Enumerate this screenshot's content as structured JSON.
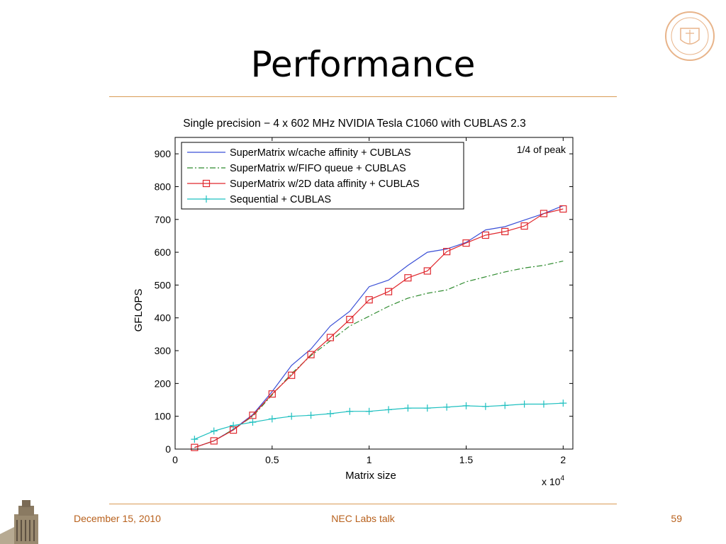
{
  "slide": {
    "title": "Performance",
    "footer_date": "December 15, 2010",
    "footer_center": "NEC Labs talk",
    "page_number": "59"
  },
  "colors": {
    "accent": "#d99b55",
    "footer_text": "#b8611d"
  },
  "icons": {
    "seal": "university-seal-icon",
    "tower": "tower-icon"
  },
  "chart_data": {
    "type": "line",
    "title": "Single precision − 4 x 602 MHz NVIDIA Tesla C1060 with CUBLAS 2.3",
    "xlabel": "Matrix size",
    "ylabel": "GFLOPS",
    "x_multiplier": "x 10",
    "x_multiplier_exp": "4",
    "xlim": [
      0,
      2.05
    ],
    "ylim": [
      0,
      950
    ],
    "xticks": [
      0,
      0.5,
      1,
      1.5,
      2
    ],
    "xtick_labels": [
      "0",
      "0.5",
      "1",
      "1.5",
      "2"
    ],
    "yticks": [
      0,
      100,
      200,
      300,
      400,
      500,
      600,
      700,
      800,
      900
    ],
    "ytick_labels": [
      "0",
      "100",
      "200",
      "300",
      "400",
      "500",
      "600",
      "700",
      "800",
      "900"
    ],
    "annotation": "1/4 of peak",
    "legend_position": "top-left",
    "x": [
      0.1,
      0.2,
      0.3,
      0.4,
      0.5,
      0.6,
      0.7,
      0.8,
      0.9,
      1.0,
      1.1,
      1.2,
      1.3,
      1.4,
      1.5,
      1.6,
      1.7,
      1.8,
      1.9,
      2.0
    ],
    "series": [
      {
        "name": "SuperMatrix w/cache affinity + CUBLAS",
        "color": "#3a4fd6",
        "style": "solid",
        "marker": "none",
        "values": [
          5,
          25,
          60,
          105,
          175,
          255,
          305,
          375,
          420,
          495,
          515,
          560,
          600,
          610,
          630,
          668,
          678,
          698,
          718,
          742
        ]
      },
      {
        "name": "SuperMatrix w/FIFO queue + CUBLAS",
        "color": "#2e8b2e",
        "style": "dashdot",
        "marker": "none",
        "values": [
          5,
          25,
          60,
          100,
          165,
          230,
          285,
          330,
          375,
          405,
          435,
          460,
          475,
          485,
          510,
          525,
          540,
          552,
          560,
          573
        ]
      },
      {
        "name": "SuperMatrix w/2D data affinity + CUBLAS",
        "color": "#e0282e",
        "style": "solid",
        "marker": "square",
        "values": [
          5,
          25,
          58,
          103,
          168,
          225,
          288,
          340,
          395,
          455,
          480,
          522,
          543,
          602,
          628,
          652,
          663,
          680,
          718,
          732
        ]
      },
      {
        "name": "Sequential + CUBLAS",
        "color": "#1fc0c0",
        "style": "solid",
        "marker": "plus",
        "values": [
          30,
          55,
          72,
          82,
          92,
          100,
          103,
          108,
          115,
          115,
          120,
          125,
          125,
          128,
          132,
          130,
          133,
          137,
          137,
          140
        ]
      }
    ]
  }
}
